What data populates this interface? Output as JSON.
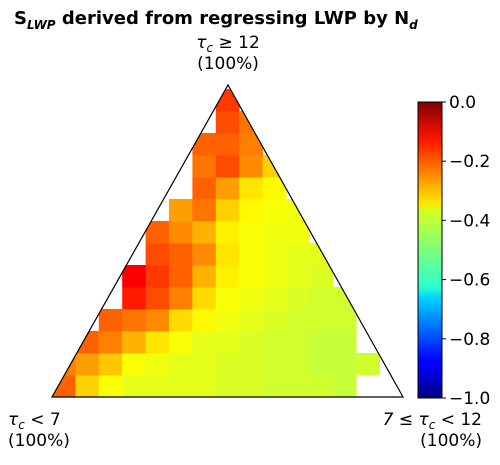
{
  "chart_data": {
    "type": "ternary-heatmap",
    "title": [
      "S",
      "LWP",
      " derived from regressing LWP by N",
      "d"
    ],
    "corners": [
      {
        "label": [
          "τ",
          "c",
          " < 7"
        ],
        "share": "(100%)"
      },
      {
        "label": [
          "7 ≤ τ",
          "c",
          " < 12"
        ],
        "share": "(100%)"
      },
      {
        "label": [
          "τ",
          "c",
          " ≥ 12"
        ],
        "share": "(100%)"
      }
    ],
    "colormap": "jet",
    "clim": [
      -1,
      0
    ],
    "cticks": [
      {
        "value": 0,
        "label": "0.0"
      },
      {
        "value": -0.2,
        "label": "−0.2"
      },
      {
        "value": -0.4,
        "label": "−0.4"
      },
      {
        "value": -0.6,
        "label": "−0.6"
      },
      {
        "value": -0.8,
        "label": "−0.8"
      },
      {
        "value": -1,
        "label": "−1.0"
      }
    ],
    "z": [
      [
        -0.22,
        -0.33,
        -0.38,
        -0.4,
        -0.4,
        -0.4,
        -0.4,
        -0.41,
        -0.41,
        -0.42,
        -0.42,
        -0.42,
        -0.43,
        null,
        null
      ],
      [
        -0.25,
        -0.28,
        -0.32,
        -0.38,
        -0.39,
        -0.4,
        -0.4,
        -0.41,
        -0.41,
        -0.42,
        -0.42,
        -0.43,
        -0.43,
        -0.42,
        null
      ],
      [
        null,
        -0.22,
        -0.25,
        -0.3,
        -0.35,
        -0.38,
        -0.4,
        -0.4,
        -0.41,
        -0.42,
        -0.42,
        -0.43,
        -0.43,
        null,
        null
      ],
      [
        null,
        null,
        -0.22,
        -0.24,
        -0.26,
        -0.34,
        -0.37,
        -0.39,
        -0.4,
        -0.41,
        -0.42,
        -0.42,
        -0.42,
        null,
        null
      ],
      [
        null,
        null,
        null,
        -0.15,
        -0.2,
        -0.25,
        -0.34,
        -0.38,
        -0.39,
        -0.4,
        -0.41,
        -0.42,
        -0.42,
        null,
        null
      ],
      [
        null,
        null,
        null,
        -0.12,
        -0.18,
        -0.22,
        -0.3,
        -0.36,
        -0.38,
        -0.39,
        -0.4,
        -0.41,
        null,
        null,
        null
      ],
      [
        null,
        null,
        null,
        null,
        -0.2,
        -0.22,
        -0.26,
        -0.35,
        -0.38,
        -0.39,
        -0.4,
        -0.4,
        null,
        null,
        null
      ],
      [
        null,
        null,
        null,
        null,
        -0.22,
        -0.26,
        -0.3,
        -0.36,
        -0.38,
        -0.39,
        -0.39,
        null,
        null,
        null,
        null
      ],
      [
        null,
        null,
        null,
        null,
        null,
        -0.28,
        -0.24,
        -0.33,
        -0.37,
        -0.38,
        -0.39,
        null,
        null,
        null,
        null
      ],
      [
        null,
        null,
        null,
        null,
        null,
        null,
        -0.22,
        -0.28,
        -0.35,
        -0.37,
        null,
        null,
        null,
        null,
        null
      ],
      [
        null,
        null,
        null,
        null,
        null,
        null,
        -0.24,
        -0.2,
        -0.26,
        -0.33,
        null,
        null,
        null,
        null,
        null
      ],
      [
        null,
        null,
        null,
        null,
        null,
        null,
        -0.22,
        -0.22,
        -0.25,
        null,
        null,
        null,
        null,
        null,
        null
      ],
      [
        null,
        null,
        null,
        null,
        null,
        null,
        null,
        -0.2,
        -0.24,
        null,
        null,
        null,
        null,
        null,
        null
      ],
      [
        null,
        null,
        null,
        null,
        null,
        null,
        null,
        -0.18,
        null,
        null,
        null,
        null,
        null,
        null,
        null
      ]
    ]
  }
}
